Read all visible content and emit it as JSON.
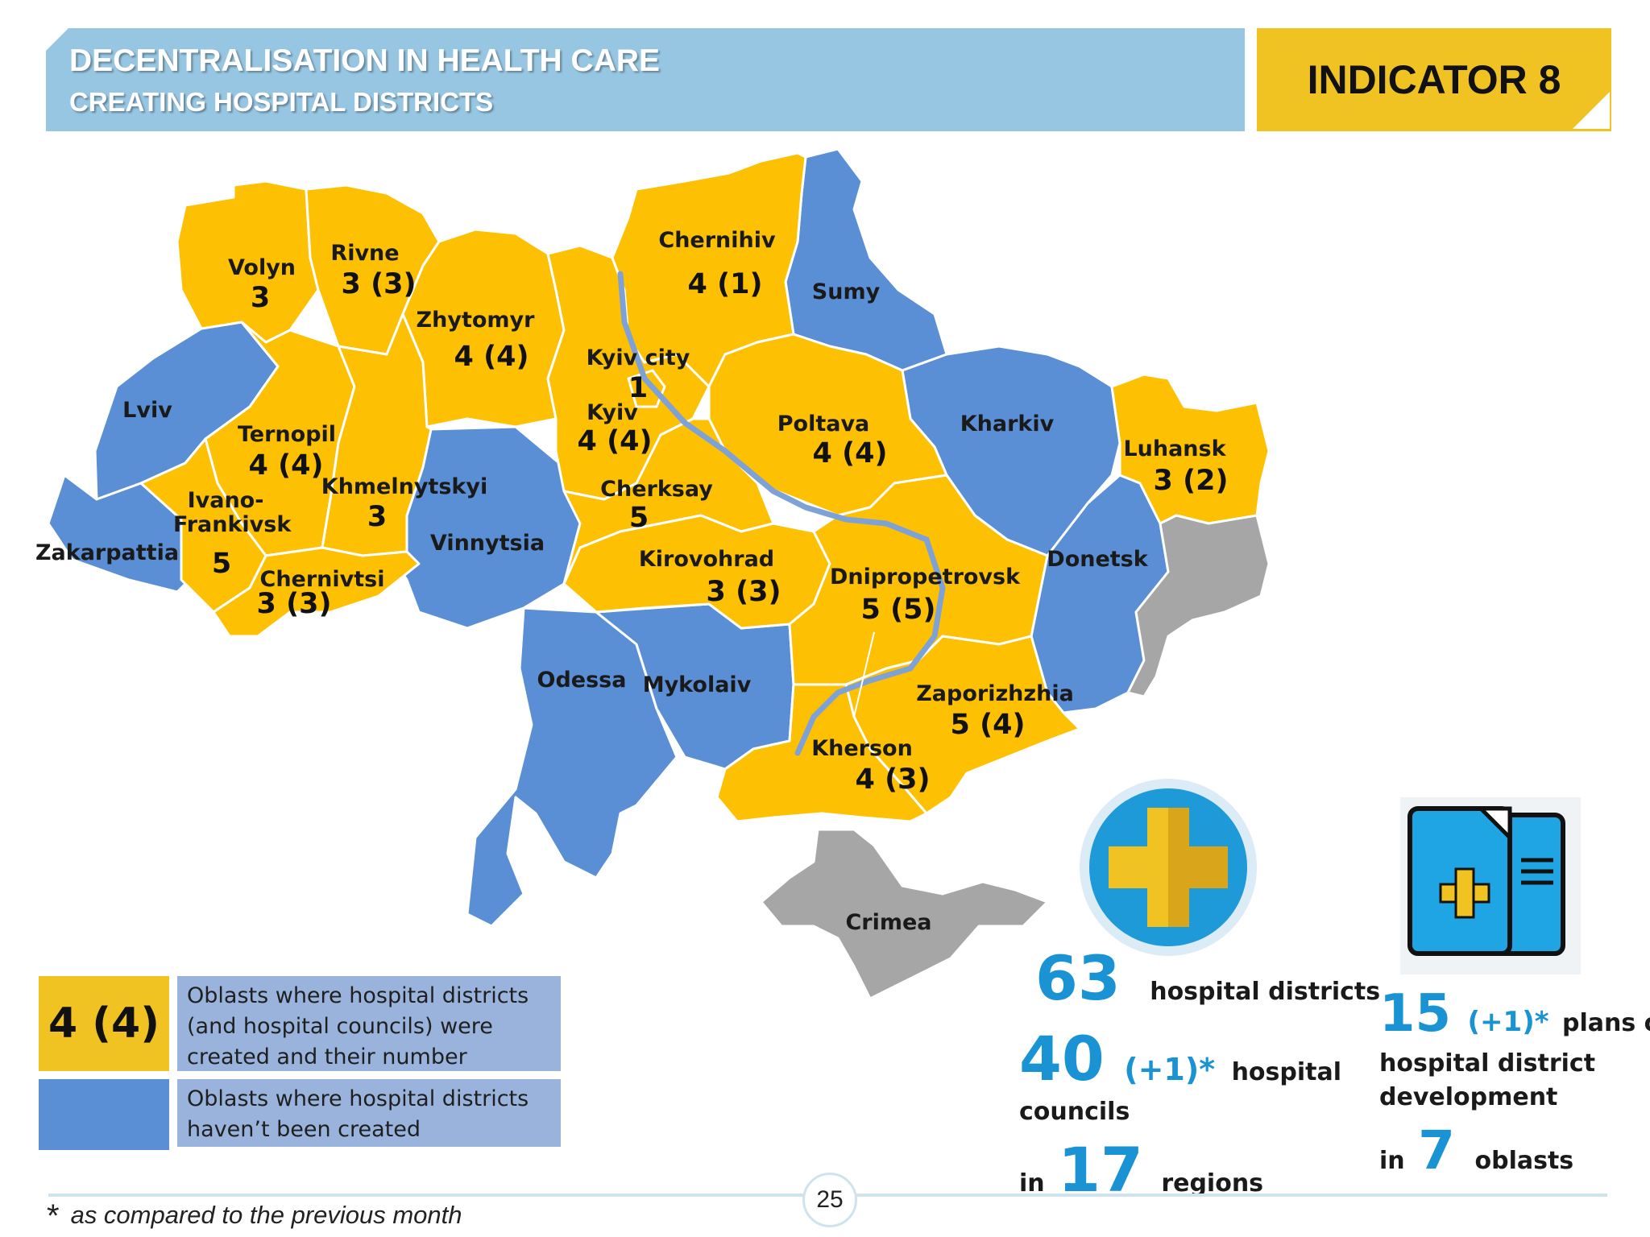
{
  "header": {
    "title": "DECENTRALISATION IN HEALTH CARE",
    "subtitle": "CREATING HOSPITAL DISTRICTS",
    "indicator": "INDICATOR 8"
  },
  "colors": {
    "created": "#fdc003",
    "not_created": "#5a8fd6",
    "occupied": "#a6a6a6",
    "accent": "#1993d3"
  },
  "regions": [
    {
      "name": "Volyn",
      "count": "3",
      "status": "created"
    },
    {
      "name": "Rivne",
      "count": "3 (3)",
      "status": "created"
    },
    {
      "name": "Zhytomyr",
      "count": "4 (4)",
      "status": "created"
    },
    {
      "name": "Chernihiv",
      "count": "4 (1)",
      "status": "created"
    },
    {
      "name": "Sumy",
      "count": "",
      "status": "not_created"
    },
    {
      "name": "Lviv",
      "count": "",
      "status": "not_created"
    },
    {
      "name": "Kyiv city",
      "count": "1",
      "status": "created"
    },
    {
      "name": "Kyiv",
      "count": "4 (4)",
      "status": "created"
    },
    {
      "name": "Poltava",
      "count": "4 (4)",
      "status": "created"
    },
    {
      "name": "Kharkiv",
      "count": "",
      "status": "not_created"
    },
    {
      "name": "Luhansk",
      "count": "3 (2)",
      "status": "created"
    },
    {
      "name": "Ternopil",
      "count": "4 (4)",
      "status": "created"
    },
    {
      "name": "Ivano-Frankivsk",
      "count": "5",
      "status": "created"
    },
    {
      "name": "Khmelnytskyi",
      "count": "3",
      "status": "created"
    },
    {
      "name": "Vinnytsia",
      "count": "",
      "status": "not_created"
    },
    {
      "name": "Cherksay",
      "count": "5",
      "status": "created"
    },
    {
      "name": "Zakarpattia",
      "count": "",
      "status": "not_created"
    },
    {
      "name": "Chernivtsi",
      "count": "3 (3)",
      "status": "created"
    },
    {
      "name": "Kirovohrad",
      "count": "3 (3)",
      "status": "created"
    },
    {
      "name": "Dnipropetrovsk",
      "count": "5 (5)",
      "status": "created"
    },
    {
      "name": "Donetsk",
      "count": "",
      "status": "not_created"
    },
    {
      "name": "Odessa",
      "count": "",
      "status": "not_created"
    },
    {
      "name": "Mykolaiv",
      "count": "",
      "status": "not_created"
    },
    {
      "name": "Zaporizhzhia",
      "count": "5 (4)",
      "status": "created"
    },
    {
      "name": "Kherson",
      "count": "4 (3)",
      "status": "created"
    },
    {
      "name": "Crimea",
      "count": "",
      "status": "occupied"
    }
  ],
  "legend": {
    "created_sample": "4 (4)",
    "created_text": "Oblasts where hospital districts (and hospital councils) were created and their number",
    "not_created_text": "Oblasts where hospital districts haven’t been created"
  },
  "stats": {
    "districts_num": "63",
    "districts_label": "hospital districts",
    "councils_num": "40",
    "councils_delta": "(+1)*",
    "councils_label1": "hospital",
    "councils_label2": "councils",
    "regions_prefix": "in",
    "regions_num": "17",
    "regions_label": "regions",
    "plans_num": "15",
    "plans_delta": "(+1)*",
    "plans_label1": "plans of",
    "plans_label2": "hospital district",
    "plans_label3": "development",
    "oblasts_prefix": "in",
    "oblasts_num": "7",
    "oblasts_label": "oblasts"
  },
  "icons": {
    "medical": "medical-cross-icon",
    "documents": "medical-documents-icon"
  },
  "footer": {
    "page": "25",
    "footnote_mark": "*",
    "footnote_text": "as compared to the previous month"
  }
}
